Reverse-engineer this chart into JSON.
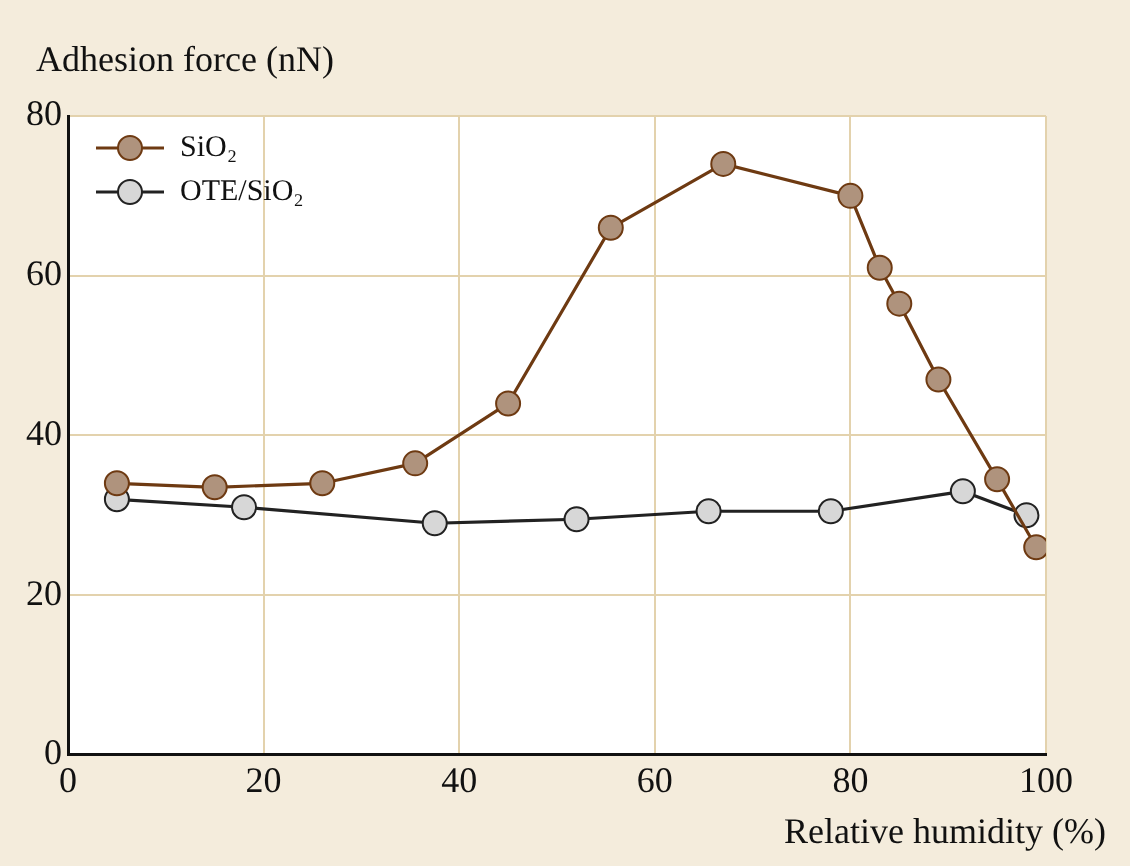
{
  "chart_data": {
    "type": "line",
    "xlabel": "Relative humidity (%)",
    "ylabel": "Adhesion force (nN)",
    "xlim": [
      0,
      100
    ],
    "xticks": [
      0,
      20,
      40,
      60,
      80,
      100
    ],
    "ylim": [
      0,
      80
    ],
    "yticks": [
      0,
      20,
      40,
      60,
      80
    ],
    "grid": true,
    "legend": "top left",
    "marker": "circle",
    "series": [
      {
        "name": "SiO₂",
        "color": "#6e3a12",
        "x": [
          5,
          15,
          26,
          35.5,
          45,
          55.5,
          67,
          80,
          83,
          85,
          89,
          95,
          99
        ],
        "values": [
          34,
          33.5,
          34,
          36.5,
          44,
          66,
          74,
          70,
          61,
          56.5,
          47,
          34.5,
          26
        ]
      },
      {
        "name": "OTE/SiO₂",
        "color": "#222222",
        "x": [
          5,
          18,
          37.5,
          52,
          65.5,
          78,
          91.5,
          98
        ],
        "values": [
          32,
          31,
          29,
          29.5,
          30.5,
          30.5,
          33,
          30
        ]
      }
    ]
  }
}
